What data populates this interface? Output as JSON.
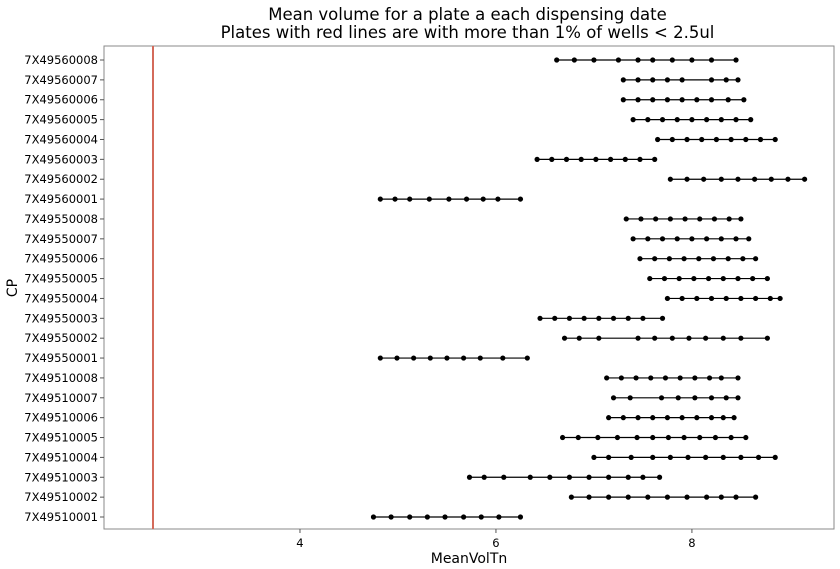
{
  "chart_data": {
    "type": "scatter",
    "title": [
      "Mean volume for a plate a each dispensing date",
      "Plates with red lines are with more than 1% of wells < 2.5ul"
    ],
    "xlabel": "MeanVolTn",
    "ylabel": "CP",
    "xlim": [
      2.0,
      9.45
    ],
    "xticks": [
      4,
      6,
      8
    ],
    "grid": false,
    "reference_line": {
      "x": 2.5,
      "color": "#d46a5a"
    },
    "series_color": "#000000",
    "categories": [
      "7X49560008",
      "7X49560007",
      "7X49560006",
      "7X49560005",
      "7X49560004",
      "7X49560003",
      "7X49560002",
      "7X49560001",
      "7X49550008",
      "7X49550007",
      "7X49550006",
      "7X49550005",
      "7X49550004",
      "7X49550003",
      "7X49550002",
      "7X49550001",
      "7X49510008",
      "7X49510007",
      "7X49510006",
      "7X49510005",
      "7X49510004",
      "7X49510003",
      "7X49510002",
      "7X49510001"
    ],
    "values": [
      [
        6.62,
        6.8,
        7.0,
        7.25,
        7.45,
        7.6,
        7.8,
        8.0,
        8.2,
        8.45
      ],
      [
        7.3,
        7.45,
        7.6,
        7.75,
        7.9,
        8.2,
        8.35,
        8.47
      ],
      [
        7.3,
        7.45,
        7.6,
        7.75,
        7.9,
        8.05,
        8.2,
        8.37,
        8.53
      ],
      [
        7.4,
        7.55,
        7.7,
        7.85,
        8.0,
        8.15,
        8.3,
        8.45,
        8.6
      ],
      [
        7.65,
        7.8,
        7.95,
        8.1,
        8.25,
        8.4,
        8.55,
        8.7,
        8.85
      ],
      [
        6.42,
        6.57,
        6.72,
        6.87,
        7.02,
        7.17,
        7.32,
        7.47,
        7.62
      ],
      [
        7.78,
        7.95,
        8.12,
        8.3,
        8.47,
        8.64,
        8.81,
        8.98,
        9.15
      ],
      [
        4.82,
        4.97,
        5.12,
        5.32,
        5.52,
        5.7,
        5.87,
        6.02,
        6.25
      ],
      [
        7.33,
        7.48,
        7.63,
        7.78,
        7.93,
        8.08,
        8.23,
        8.38,
        8.5
      ],
      [
        7.4,
        7.55,
        7.7,
        7.85,
        8.0,
        8.15,
        8.3,
        8.45,
        8.58
      ],
      [
        7.47,
        7.62,
        7.77,
        7.92,
        8.07,
        8.22,
        8.37,
        8.52,
        8.65
      ],
      [
        7.57,
        7.72,
        7.87,
        8.02,
        8.17,
        8.32,
        8.47,
        8.62,
        8.77
      ],
      [
        7.75,
        7.9,
        8.05,
        8.2,
        8.35,
        8.5,
        8.65,
        8.8,
        8.9
      ],
      [
        6.45,
        6.6,
        6.75,
        6.9,
        7.05,
        7.2,
        7.35,
        7.5,
        7.7
      ],
      [
        6.7,
        6.85,
        7.05,
        7.45,
        7.62,
        7.8,
        7.97,
        8.14,
        8.32,
        8.5,
        8.77
      ],
      [
        4.82,
        4.99,
        5.16,
        5.33,
        5.5,
        5.67,
        5.84,
        6.07,
        6.32
      ],
      [
        7.13,
        7.28,
        7.43,
        7.58,
        7.73,
        7.88,
        8.03,
        8.18,
        8.3,
        8.47
      ],
      [
        7.2,
        7.37,
        7.69,
        7.86,
        8.03,
        8.2,
        8.35,
        8.47
      ],
      [
        7.15,
        7.3,
        7.45,
        7.6,
        7.75,
        7.9,
        8.05,
        8.2,
        8.32,
        8.43
      ],
      [
        6.68,
        6.84,
        7.04,
        7.24,
        7.44,
        7.6,
        7.76,
        7.92,
        8.08,
        8.24,
        8.4,
        8.55
      ],
      [
        7.0,
        7.15,
        7.38,
        7.6,
        7.78,
        7.96,
        8.14,
        8.32,
        8.5,
        8.68,
        8.85
      ],
      [
        5.73,
        5.88,
        6.08,
        6.35,
        6.55,
        6.75,
        6.95,
        7.15,
        7.35,
        7.5,
        7.67
      ],
      [
        6.77,
        6.95,
        7.15,
        7.35,
        7.55,
        7.75,
        7.95,
        8.15,
        8.3,
        8.45,
        8.65
      ],
      [
        4.75,
        4.93,
        5.12,
        5.3,
        5.48,
        5.67,
        5.85,
        6.03,
        6.25
      ]
    ]
  }
}
